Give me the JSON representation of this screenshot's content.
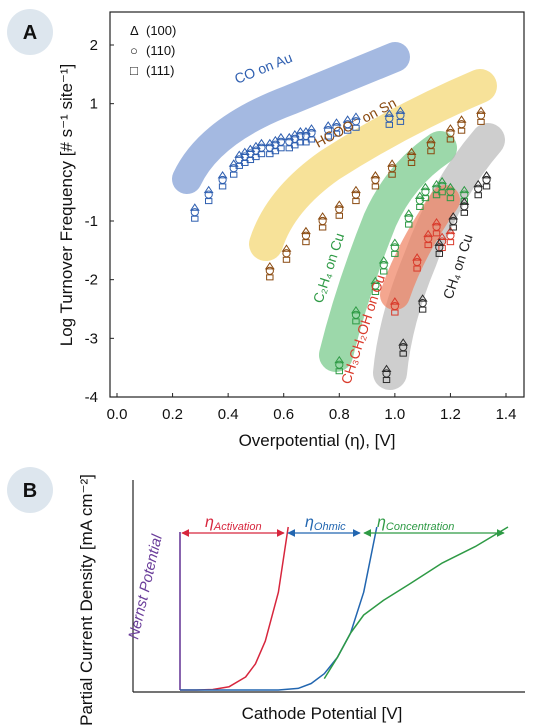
{
  "panels": {
    "a_label": "A",
    "b_label": "B"
  },
  "chart_data": [
    {
      "type": "scatter",
      "panel": "A",
      "xlabel": "Overpotential (η), [V]",
      "ylabel": "Log Turnover Frequency [# s⁻¹ site⁻¹]",
      "xlim": [
        0.0,
        1.4
      ],
      "ylim": [
        -4,
        2.5
      ],
      "xticks": [
        "0.0",
        "0.2",
        "0.4",
        "0.6",
        "0.8",
        "1.0",
        "1.2",
        "1.4"
      ],
      "yticks": [
        "2",
        "1",
        "-1",
        "-2",
        "-3",
        "-4"
      ],
      "ytick_values": [
        2,
        1,
        -1,
        -2,
        -3,
        -4
      ],
      "grid": false,
      "legend_position": "top-left",
      "markers": [
        {
          "symbol": "Δ",
          "label": "(100)"
        },
        {
          "symbol": "○",
          "label": "(110)"
        },
        {
          "symbol": "□",
          "label": "(111)"
        }
      ],
      "series": [
        {
          "label_main": "CO on Au",
          "color": "#2f5fb0",
          "band_color": "#5a7fc8",
          "points": [
            [
              0.28,
              -0.85
            ],
            [
              0.33,
              -0.55
            ],
            [
              0.38,
              -0.3
            ],
            [
              0.42,
              -0.1
            ],
            [
              0.44,
              0.05
            ],
            [
              0.46,
              0.1
            ],
            [
              0.48,
              0.15
            ],
            [
              0.5,
              0.2
            ],
            [
              0.52,
              0.25
            ],
            [
              0.55,
              0.25
            ],
            [
              0.57,
              0.3
            ],
            [
              0.59,
              0.35
            ],
            [
              0.62,
              0.35
            ],
            [
              0.64,
              0.4
            ],
            [
              0.66,
              0.45
            ],
            [
              0.68,
              0.45
            ],
            [
              0.7,
              0.5
            ],
            [
              0.76,
              0.55
            ],
            [
              0.79,
              0.6
            ],
            [
              0.83,
              0.65
            ],
            [
              0.86,
              0.7
            ],
            [
              0.98,
              0.75
            ],
            [
              1.02,
              0.8
            ]
          ]
        },
        {
          "label_main": "HCOO⁻ on Sn",
          "color": "#8a4a10",
          "band_color": "#f1cf55",
          "points": [
            [
              0.55,
              -1.85
            ],
            [
              0.61,
              -1.55
            ],
            [
              0.68,
              -1.25
            ],
            [
              0.74,
              -1.0
            ],
            [
              0.8,
              -0.8
            ],
            [
              0.86,
              -0.55
            ],
            [
              0.93,
              -0.3
            ],
            [
              0.99,
              -0.1
            ],
            [
              1.06,
              0.1
            ],
            [
              1.13,
              0.3
            ],
            [
              1.2,
              0.5
            ],
            [
              1.24,
              0.65
            ],
            [
              1.31,
              0.8
            ]
          ]
        },
        {
          "label_main": "C₂H₄ on Cu",
          "color": "#2e9a45",
          "band_color": "#4bb865",
          "points": [
            [
              0.8,
              -3.45
            ],
            [
              0.86,
              -2.6
            ],
            [
              0.93,
              -2.1
            ],
            [
              0.96,
              -1.75
            ],
            [
              1.0,
              -1.45
            ],
            [
              1.05,
              -0.95
            ],
            [
              1.09,
              -0.65
            ],
            [
              1.11,
              -0.5
            ],
            [
              1.15,
              -0.45
            ],
            [
              1.17,
              -0.4
            ],
            [
              1.2,
              -0.5
            ],
            [
              1.25,
              -0.55
            ]
          ]
        },
        {
          "label_main": "CH₃CH₂OH on Cu",
          "color": "#d93a2b",
          "band_color": "#f08060",
          "points": [
            [
              1.0,
              -2.45
            ],
            [
              1.08,
              -1.7
            ],
            [
              1.12,
              -1.3
            ],
            [
              1.15,
              -1.1
            ],
            [
              1.17,
              -1.35
            ],
            [
              1.2,
              -1.25
            ]
          ]
        },
        {
          "label_main": "CH₄ on Cu",
          "color": "#2a2a2a",
          "band_color": "#b4b4b4",
          "points": [
            [
              0.97,
              -3.6
            ],
            [
              1.03,
              -3.15
            ],
            [
              1.1,
              -2.4
            ],
            [
              1.16,
              -1.45
            ],
            [
              1.21,
              -1.0
            ],
            [
              1.25,
              -0.75
            ],
            [
              1.3,
              -0.45
            ],
            [
              1.33,
              -0.3
            ]
          ]
        }
      ]
    },
    {
      "type": "line",
      "panel": "B",
      "xlabel": "Cathode Potential [V]",
      "ylabel": "Partial Current Density [mA cm⁻²]",
      "axis_lines": true,
      "vertical_label": "Nernst Potential",
      "vertical_color": "#6a3d9a",
      "segments": [
        {
          "label": "Activation",
          "color": "#d7263d"
        },
        {
          "label": "Ohmic",
          "color": "#2266b0"
        },
        {
          "label": "Concentration",
          "color": "#2e9a45"
        }
      ],
      "series": [
        {
          "color": "#d7263d",
          "x": [
            0.0,
            0.05,
            0.1,
            0.15,
            0.2,
            0.23,
            0.26,
            0.3,
            0.33
          ],
          "y": [
            0.0,
            0.0,
            0.003,
            0.02,
            0.08,
            0.16,
            0.3,
            0.6,
            1.0
          ]
        },
        {
          "color": "#2266b0",
          "x": [
            0.0,
            0.3,
            0.36,
            0.4,
            0.44,
            0.48,
            0.52,
            0.56,
            0.6
          ],
          "y": [
            0.0,
            0.0,
            0.01,
            0.04,
            0.1,
            0.2,
            0.35,
            0.6,
            1.0
          ]
        },
        {
          "color": "#2e9a45",
          "x": [
            0.44,
            0.48,
            0.52,
            0.56,
            0.62,
            0.7,
            0.8,
            0.9,
            1.0
          ],
          "y": [
            0.07,
            0.2,
            0.35,
            0.46,
            0.55,
            0.65,
            0.78,
            0.88,
            1.0
          ]
        }
      ]
    }
  ]
}
